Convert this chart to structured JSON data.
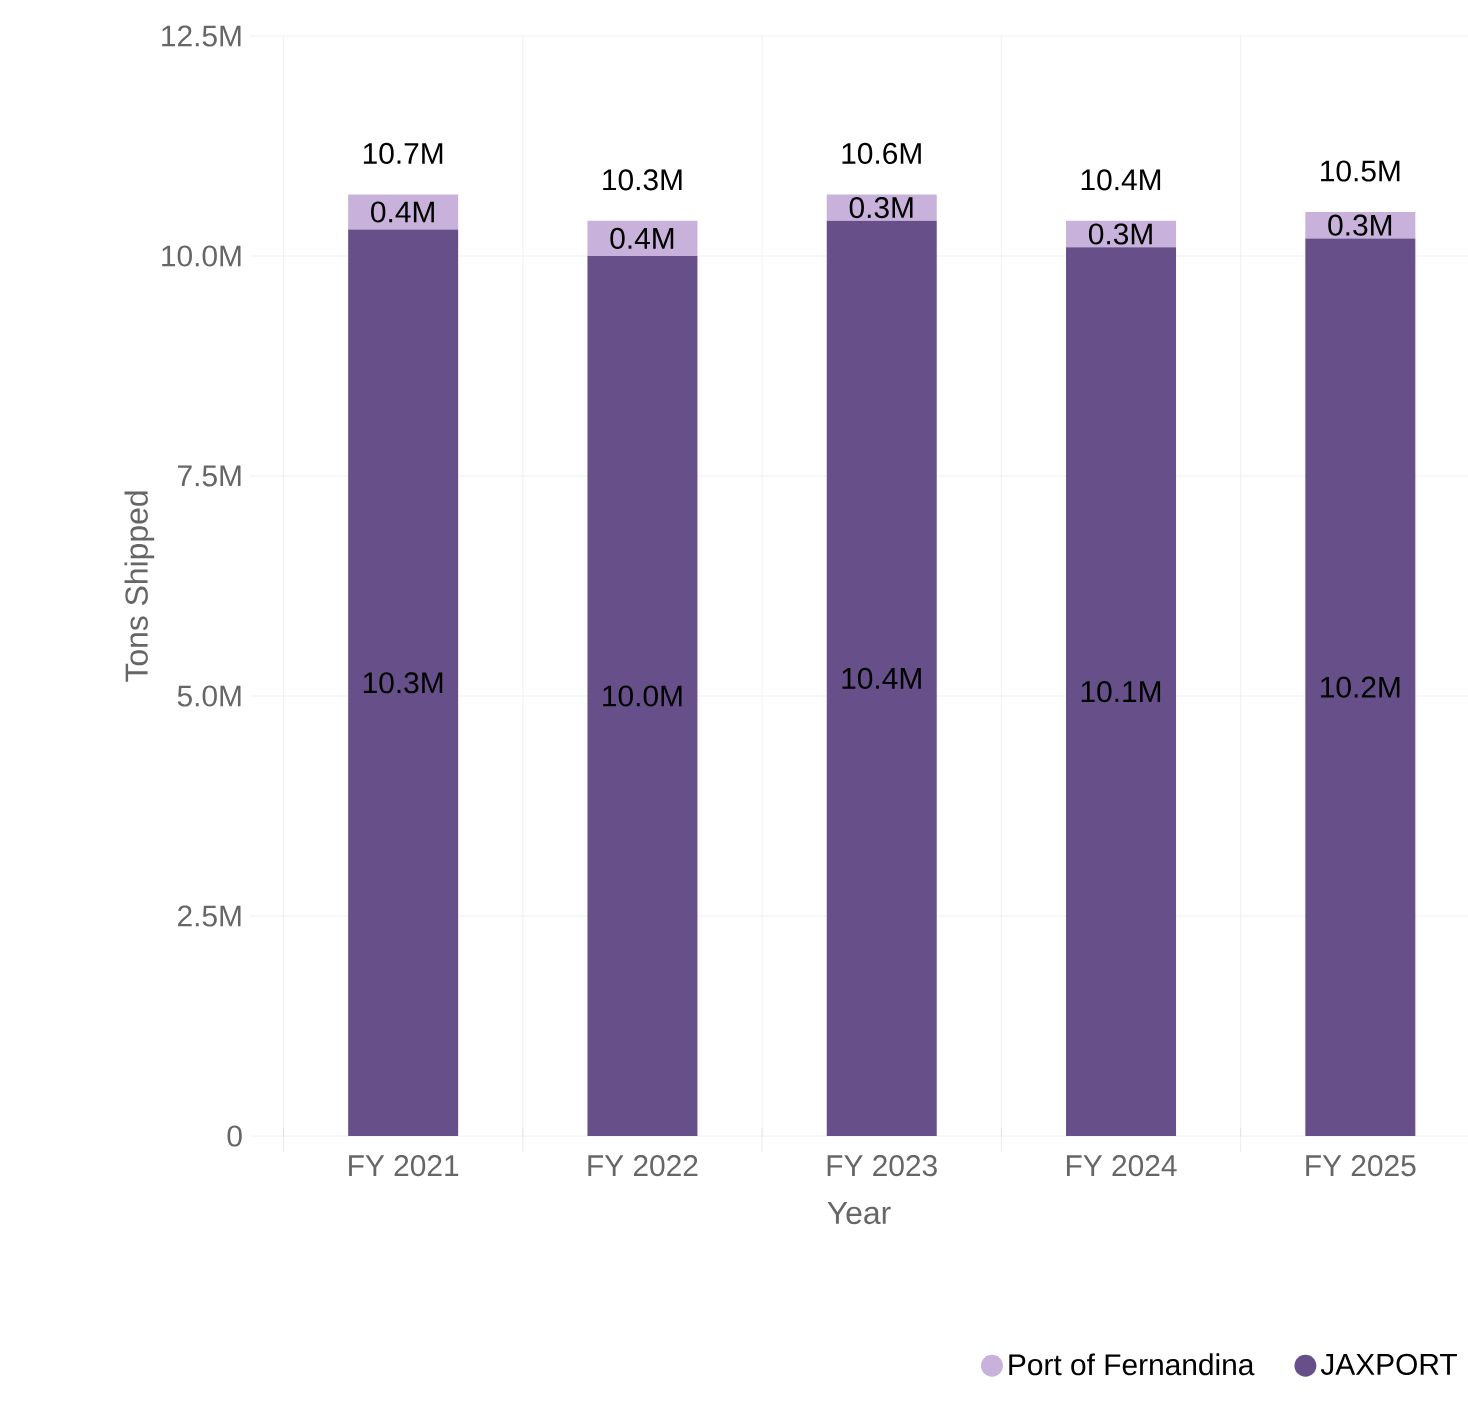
{
  "chart_data": {
    "type": "bar",
    "stacked": true,
    "xlabel": "Year",
    "ylabel": "Tons Shipped",
    "categories": [
      "FY 2021",
      "FY 2022",
      "FY 2023",
      "FY 2024",
      "FY 2025"
    ],
    "series": [
      {
        "name": "JAXPORT",
        "color": "#67508a",
        "values": [
          10.3,
          10.0,
          10.4,
          10.1,
          10.2
        ],
        "value_labels": [
          "10.3M",
          "10.0M",
          "10.4M",
          "10.1M",
          "10.2M"
        ]
      },
      {
        "name": "Port of Fernandina",
        "color": "#c8b1da",
        "values": [
          0.4,
          0.4,
          0.3,
          0.3,
          0.3
        ],
        "value_labels": [
          "0.4M",
          "0.4M",
          "0.3M",
          "0.3M",
          "0.3M"
        ]
      }
    ],
    "totals": [
      "10.7M",
      "10.3M",
      "10.6M",
      "10.4M",
      "10.5M"
    ],
    "ylim": [
      0,
      12.5
    ],
    "yticks": [
      0,
      {
        "value": 2.5,
        "label": "2.5M"
      },
      {
        "value": 5,
        "label": "5.0M"
      },
      {
        "value": 7.5,
        "label": "7.5M"
      },
      {
        "value": 10,
        "label": "10.0M"
      },
      {
        "value": 12.5,
        "label": "12.5M"
      }
    ],
    "grid": true,
    "legend": "bottom right"
  }
}
